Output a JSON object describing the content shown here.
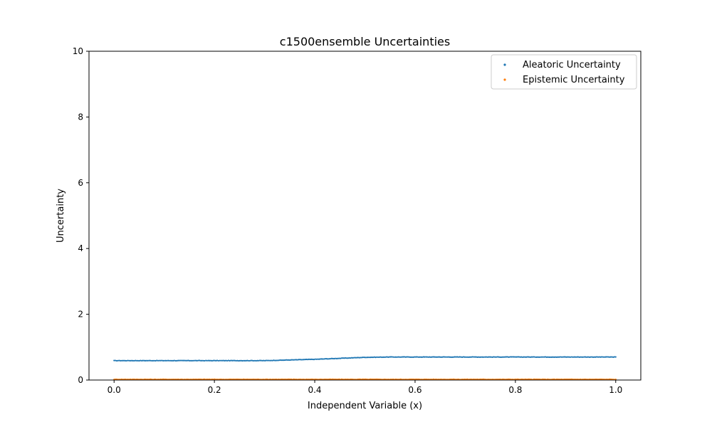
{
  "chart_data": {
    "type": "scatter",
    "title": "c1500ensemble Uncertainties",
    "xlabel": "Independent Variable (x)",
    "ylabel": "Uncertainty",
    "xlim": [
      -0.05,
      1.05
    ],
    "ylim": [
      0,
      10
    ],
    "x_ticks": [
      0.0,
      0.2,
      0.4,
      0.6,
      0.8,
      1.0
    ],
    "x_tick_labels": [
      "0.0",
      "0.2",
      "0.4",
      "0.6",
      "0.8",
      "1.0"
    ],
    "y_ticks": [
      0,
      2,
      4,
      6,
      8,
      10
    ],
    "y_tick_labels": [
      "0",
      "2",
      "4",
      "6",
      "8",
      "10"
    ],
    "grid": false,
    "legend_position": "top-right",
    "series": [
      {
        "name": "Aleatoric Uncertainty",
        "color": "#1f77b4",
        "x": [
          0.0,
          0.1,
          0.2,
          0.3,
          0.35,
          0.4,
          0.45,
          0.5,
          0.55,
          0.6,
          0.7,
          0.8,
          0.9,
          1.0
        ],
        "y": [
          0.59,
          0.59,
          0.59,
          0.59,
          0.61,
          0.63,
          0.66,
          0.69,
          0.7,
          0.7,
          0.7,
          0.7,
          0.7,
          0.7
        ]
      },
      {
        "name": "Epistemic Uncertainty",
        "color": "#ff7f0e",
        "x": [
          0.0,
          0.2,
          0.4,
          0.6,
          0.8,
          1.0
        ],
        "y": [
          0.02,
          0.02,
          0.02,
          0.02,
          0.02,
          0.02
        ]
      }
    ]
  }
}
